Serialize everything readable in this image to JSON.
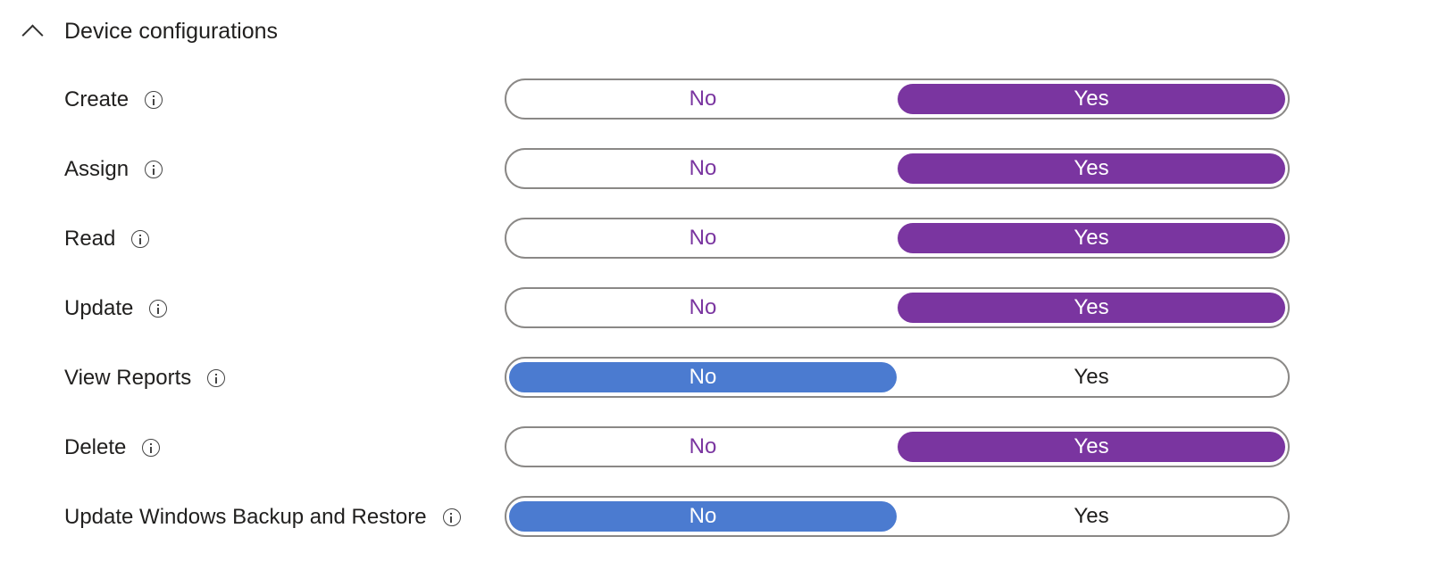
{
  "section": {
    "title": "Device configurations",
    "expanded": true
  },
  "colors": {
    "yes_selected": "#7a35a0",
    "no_selected": "#4b7bd0",
    "border": "#8a8886"
  },
  "options": {
    "no": "No",
    "yes": "Yes"
  },
  "rows": [
    {
      "label": "Create",
      "value": "Yes"
    },
    {
      "label": "Assign",
      "value": "Yes"
    },
    {
      "label": "Read",
      "value": "Yes"
    },
    {
      "label": "Update",
      "value": "Yes"
    },
    {
      "label": "View Reports",
      "value": "No"
    },
    {
      "label": "Delete",
      "value": "Yes"
    },
    {
      "label": "Update Windows Backup and Restore",
      "value": "No"
    }
  ]
}
